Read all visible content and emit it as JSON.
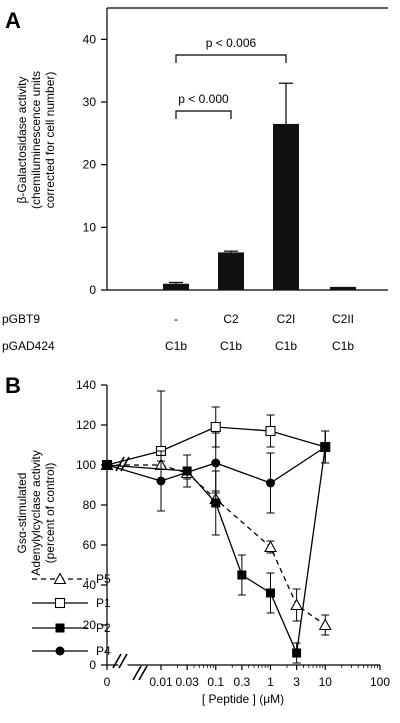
{
  "chart_data": [
    {
      "panel": "A",
      "type": "bar",
      "ylabel_lines": [
        "β-Galactosidase activity",
        "(chemiluminescence units",
        "corrected for cell number)"
      ],
      "ylim": [
        0,
        45
      ],
      "yticks": [
        "0",
        "10",
        "20",
        "30",
        "40"
      ],
      "row_labels": {
        "pGBT9": "pGBT9",
        "pGAD424": "pGAD424"
      },
      "categories": [
        {
          "pGBT9": "-",
          "pGAD424": "C1b"
        },
        {
          "pGBT9": "C2",
          "pGAD424": "C1b"
        },
        {
          "pGBT9": "C2I",
          "pGAD424": "C1b"
        },
        {
          "pGBT9": "C2II",
          "pGAD424": "C1b"
        }
      ],
      "values": [
        1.0,
        6.0,
        26.5,
        0.5
      ],
      "error": [
        0.2,
        0.2,
        6.5,
        0.1
      ],
      "annotations": [
        {
          "text": "p < 0.000",
          "from": 0,
          "to": 1
        },
        {
          "text": "p < 0.006",
          "from": 0,
          "to": 2
        }
      ]
    },
    {
      "panel": "B",
      "type": "line",
      "xlabel": "[ Peptide ] (μM)",
      "ylabel_lines": [
        "Gsα-stimulated",
        "Adenylylcyclase activity",
        "(percent of control)"
      ],
      "xscale": "log with axis break (0 shown separately)",
      "xticks": [
        "0",
        "0.01",
        "0.03",
        "0.1",
        "0.3",
        "1",
        "3",
        "10",
        "100"
      ],
      "yticks": [
        "0",
        "20",
        "40",
        "60",
        "80",
        "100",
        "120",
        "140"
      ],
      "ylim": [
        0,
        140
      ],
      "legend_position": "bottom-left",
      "series": [
        {
          "name": "P5",
          "marker": "open-triangle",
          "dashed": true,
          "x": [
            0,
            0.01,
            0.03,
            0.1,
            1,
            3,
            10
          ],
          "y": [
            100,
            100,
            96,
            83,
            59,
            30,
            20
          ],
          "err": [
            0,
            2,
            3,
            4,
            3,
            8,
            5
          ]
        },
        {
          "name": "P1",
          "marker": "open-square",
          "dashed": false,
          "x": [
            0,
            0.01,
            0.1,
            1,
            10
          ],
          "y": [
            100,
            107,
            119,
            117,
            109
          ],
          "err": [
            0,
            30,
            10,
            8,
            8
          ]
        },
        {
          "name": "P2",
          "marker": "filled-square",
          "dashed": false,
          "x": [
            0,
            0.03,
            0.1,
            0.3,
            1,
            3,
            10
          ],
          "y": [
            100,
            97,
            81,
            45,
            36,
            6,
            109
          ],
          "err": [
            0,
            8,
            16,
            10,
            10,
            5,
            8
          ]
        },
        {
          "name": "P4",
          "marker": "filled-circle",
          "dashed": false,
          "x": [
            0,
            0.01,
            0.1,
            1,
            10
          ],
          "y": [
            100,
            92,
            101,
            91,
            109
          ],
          "err": [
            0,
            15,
            15,
            15,
            8
          ]
        }
      ]
    }
  ]
}
